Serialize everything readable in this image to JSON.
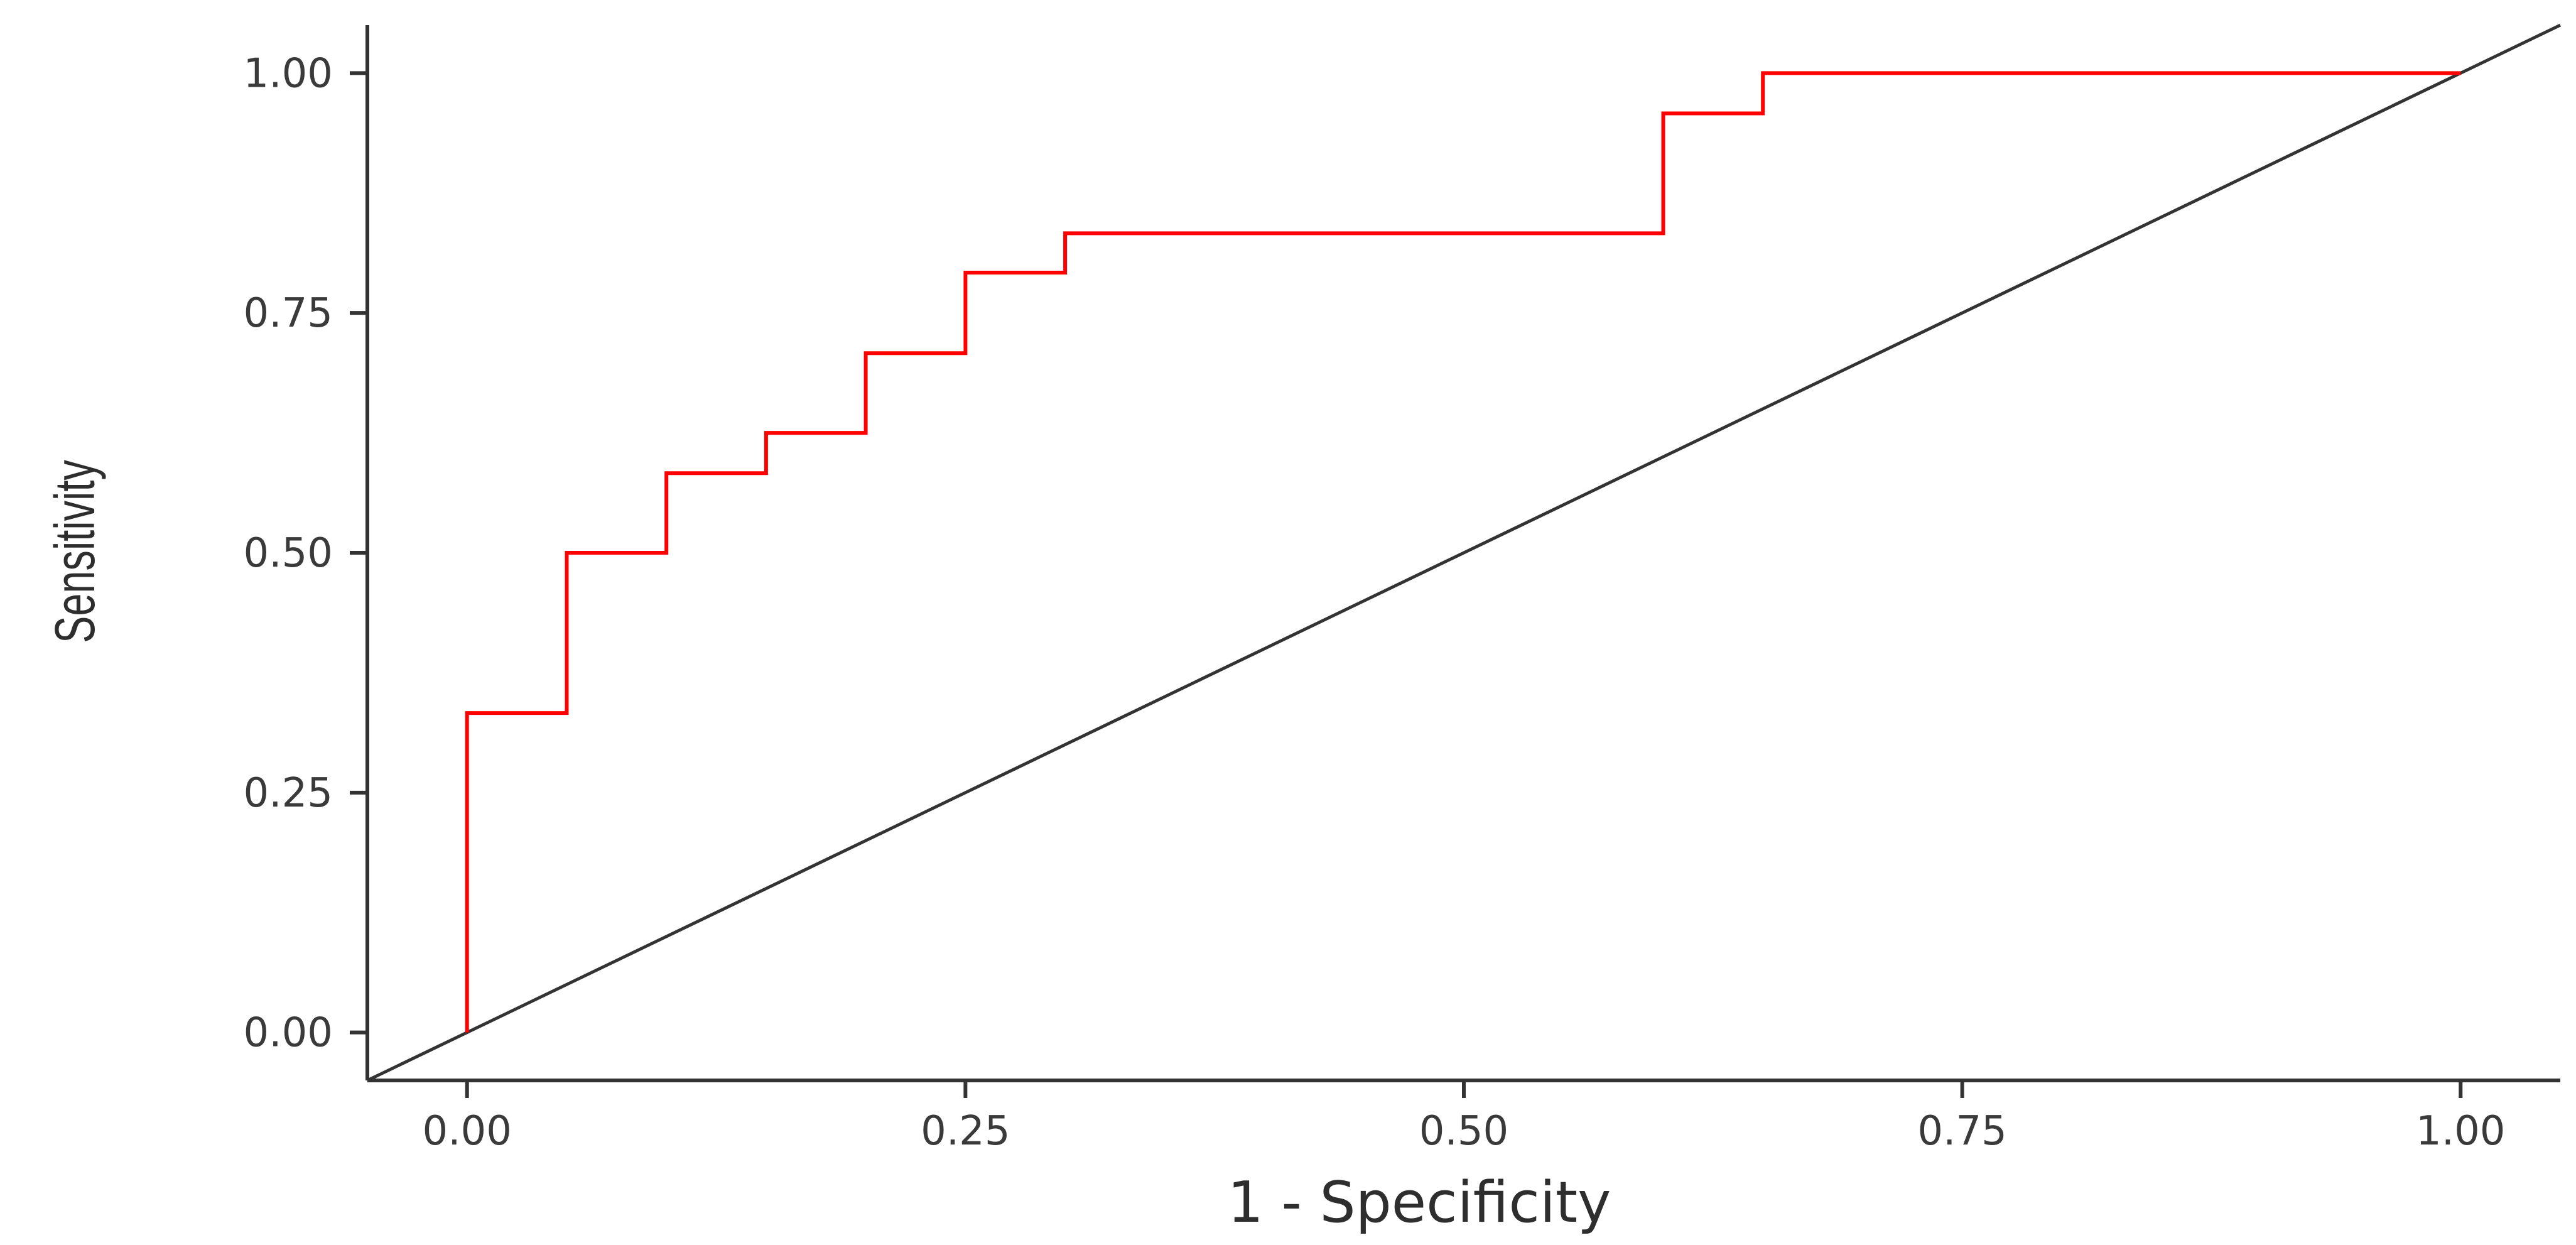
{
  "chart_data": {
    "type": "line",
    "title": "",
    "xlabel": "1 - Specificity",
    "ylabel": "Sensitivity",
    "xlim": [
      -0.05,
      1.05
    ],
    "ylim": [
      -0.05,
      1.05
    ],
    "x_ticks": [
      0,
      0.25,
      0.5,
      0.75,
      1
    ],
    "x_tick_labels": [
      "0.00",
      "0.25",
      "0.50",
      "0.75",
      "1.00"
    ],
    "y_ticks": [
      0,
      0.25,
      0.5,
      0.75,
      1
    ],
    "y_tick_labels": [
      "0.00",
      "0.25",
      "0.50",
      "0.75",
      "1.00"
    ],
    "grid": false,
    "legend": "none",
    "series": [
      {
        "style": "step",
        "color": "#ff0000",
        "x": [
          0,
          0,
          0.05,
          0.05,
          0.1,
          0.1,
          0.15,
          0.15,
          0.2,
          0.2,
          0.25,
          0.25,
          0.3,
          0.3,
          0.6,
          0.6,
          0.65,
          0.65,
          1
        ],
        "y": [
          0,
          0.333,
          0.333,
          0.5,
          0.5,
          0.583,
          0.583,
          0.625,
          0.625,
          0.708,
          0.708,
          0.792,
          0.792,
          0.833,
          0.833,
          0.958,
          0.958,
          1,
          1
        ]
      },
      {
        "style": "reference-diagonal",
        "color": "#333333",
        "x": [
          -0.05,
          1.05
        ],
        "y": [
          -0.05,
          1.05
        ]
      }
    ]
  }
}
